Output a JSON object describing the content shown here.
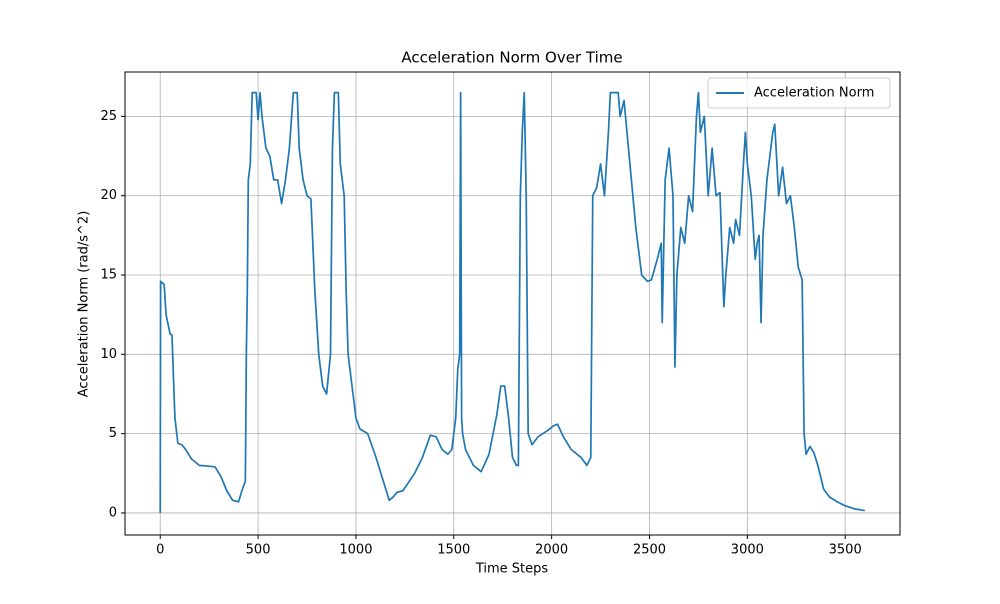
{
  "chart_data": {
    "type": "line",
    "title": "Acceleration Norm Over Time",
    "x_label": "Time Steps",
    "y_label": "Acceleration Norm (rad/s^2)",
    "x": [
      0,
      2,
      20,
      30,
      50,
      60,
      75,
      90,
      110,
      130,
      160,
      200,
      250,
      280,
      310,
      340,
      370,
      400,
      420,
      435,
      440,
      445,
      450,
      460,
      470,
      490,
      500,
      510,
      520,
      540,
      560,
      580,
      600,
      620,
      640,
      660,
      680,
      700,
      710,
      730,
      750,
      770,
      790,
      810,
      830,
      850,
      870,
      880,
      890,
      910,
      920,
      940,
      950,
      960,
      970,
      990,
      1000,
      1020,
      1060,
      1100,
      1140,
      1170,
      1190,
      1210,
      1240,
      1300,
      1340,
      1380,
      1410,
      1440,
      1470,
      1490,
      1510,
      1520,
      1530,
      1535,
      1540,
      1545,
      1560,
      1600,
      1640,
      1680,
      1720,
      1740,
      1760,
      1780,
      1800,
      1820,
      1830,
      1840,
      1850,
      1860,
      1870,
      1880,
      1900,
      1930,
      1980,
      2010,
      2030,
      2060,
      2100,
      2150,
      2180,
      2200,
      2210,
      2230,
      2250,
      2270,
      2290,
      2300,
      2340,
      2350,
      2370,
      2400,
      2430,
      2460,
      2490,
      2510,
      2540,
      2560,
      2565,
      2580,
      2600,
      2620,
      2630,
      2640,
      2660,
      2680,
      2700,
      2720,
      2740,
      2750,
      2760,
      2780,
      2800,
      2820,
      2840,
      2860,
      2880,
      2890,
      2910,
      2930,
      2940,
      2960,
      2980,
      2990,
      3000,
      3020,
      3040,
      3050,
      3060,
      3070,
      3080,
      3100,
      3130,
      3140,
      3160,
      3180,
      3200,
      3220,
      3240,
      3260,
      3280,
      3290,
      3300,
      3320,
      3340,
      3360,
      3390,
      3420,
      3460,
      3500,
      3550,
      3600
    ],
    "series": [
      {
        "name": "Acceleration Norm",
        "color": "#1f77b4",
        "values": [
          0,
          14.6,
          14.4,
          12.5,
          11.3,
          11.2,
          6,
          4.4,
          4.3,
          4.0,
          3.4,
          3.0,
          2.95,
          2.9,
          2.3,
          1.4,
          0.8,
          0.7,
          1.5,
          2,
          10,
          14,
          21,
          22,
          26.5,
          26.5,
          24.8,
          26.5,
          25,
          23,
          22.5,
          21,
          21,
          19.5,
          21,
          23,
          26.5,
          26.5,
          23,
          21,
          20,
          19.8,
          14,
          10,
          8,
          7.5,
          10,
          23,
          26.5,
          26.5,
          22,
          20,
          14,
          10,
          9,
          7,
          6,
          5.3,
          5,
          3.6,
          2,
          0.8,
          1,
          1.3,
          1.4,
          2.5,
          3.5,
          4.9,
          4.8,
          4,
          3.7,
          4,
          6,
          9,
          10,
          26.5,
          6,
          5,
          4,
          3,
          2.6,
          3.7,
          6.2,
          8,
          8,
          6,
          3.5,
          3,
          3,
          20,
          24,
          26.5,
          20,
          5,
          4.3,
          4.8,
          5.2,
          5.5,
          5.6,
          4.8,
          4,
          3.5,
          3,
          3.5,
          20,
          20.5,
          22,
          20,
          24,
          26.5,
          26.5,
          25,
          26,
          22,
          18,
          15,
          14.6,
          14.7,
          16,
          17,
          12,
          21,
          23,
          20,
          9.2,
          15,
          18,
          17,
          20,
          19,
          25,
          26.5,
          24,
          25,
          20,
          23,
          20,
          20.2,
          13,
          15,
          18,
          17,
          18.5,
          17.5,
          22,
          24,
          22,
          20,
          16,
          17,
          17.5,
          12,
          17.5,
          21,
          24,
          24.5,
          20,
          21.8,
          19.5,
          20,
          18,
          15.5,
          14.7,
          5,
          3.7,
          4.2,
          3.8,
          3,
          1.5,
          1,
          0.7,
          0.45,
          0.25,
          0.15
        ]
      }
    ],
    "xlim": [
      -180,
      3780
    ],
    "ylim": [
      -1.39,
      27.8
    ],
    "xticks": [
      0,
      500,
      1000,
      1500,
      2000,
      2500,
      3000,
      3500
    ],
    "yticks": [
      0,
      5,
      10,
      15,
      20,
      25
    ],
    "grid": true,
    "legend": "upper right"
  }
}
